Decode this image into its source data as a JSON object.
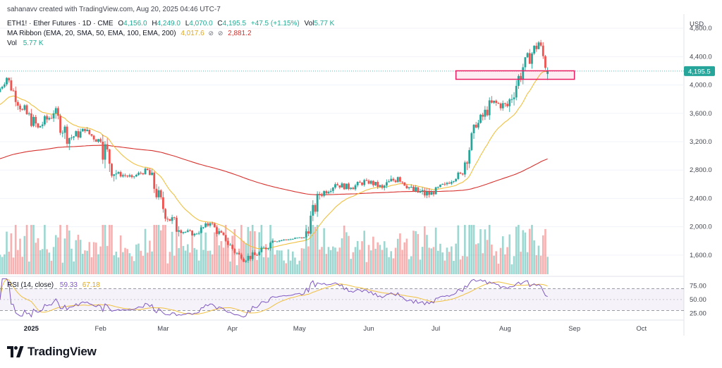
{
  "header": {
    "created": "sahanavv created with TradingView.com, Aug 20, 2025 04:46 UTC-7",
    "symbol": "ETH1! · Ether Futures · 1D · CME",
    "o_label": "O",
    "o_val": "4,156.0",
    "h_label": "H",
    "h_val": "4,249.0",
    "l_label": "L",
    "l_val": "4,070.0",
    "c_label": "C",
    "c_val": "4,195.5",
    "change": "+47.5 (+1.15%)",
    "vol_label": "Vol",
    "vol_val": "5.77 K",
    "ma_label": "MA Ribbon (EMA, 20, SMA, 50, EMA, 100, EMA, 200)",
    "ma_val1": "4,017.6",
    "ma_sym1": "⊘",
    "ma_sym2": "⊘",
    "ma_val2": "2,881.2",
    "vol2_label": "Vol",
    "vol2_val": "5.77 K"
  },
  "price_axis": {
    "currency": "USD",
    "ticks": [
      "4,800.0",
      "4,400.0",
      "4,000.0",
      "3,600.0",
      "3,200.0",
      "2,800.0",
      "2,400.0",
      "2,000.0",
      "1,600.0"
    ],
    "last_price": "4,195.5"
  },
  "rsi": {
    "label": "RSI (14, close)",
    "rsi_val": "59.33",
    "ma_val": "67.18",
    "ticks": [
      "75.00",
      "50.00",
      "25.00"
    ]
  },
  "time_axis": [
    "2025",
    "Feb",
    "Mar",
    "Apr",
    "May",
    "Jun",
    "Jul",
    "Aug",
    "Sep",
    "Oct"
  ],
  "brand": {
    "name": "TradingView"
  },
  "colors": {
    "up": "#26a69a",
    "down": "#ef5350",
    "ema20": "#f0c040",
    "ema200": "#d6322e",
    "rsi_line": "#7e57c2",
    "rsi_ma": "#f0c040",
    "zone": "#e91e63"
  },
  "chart_data": {
    "type": "candlestick",
    "title": "ETH1! · Ether Futures · 1D · CME",
    "y_unit": "USD",
    "ylim": [
      1300,
      5000
    ],
    "x_range": [
      "2024-12-18",
      "2025-10-20"
    ],
    "last": {
      "date": "2025-08-20",
      "open": 4156.0,
      "high": 4249.0,
      "low": 4070.0,
      "close": 4195.5,
      "change": 47.5,
      "change_pct": 1.15,
      "volume": "5.77K"
    },
    "ma_ribbon": {
      "ema20_last": 4017.6,
      "ema200_last": 2881.2
    },
    "highlight_zone": {
      "from_date": "2025-07-10",
      "to_date": "2025-09-01",
      "low": 4080,
      "high": 4200
    },
    "rsi_last": 59.33,
    "rsi_ma_last": 67.18,
    "candles_weekly_approx": [
      {
        "d": "2024-12-18",
        "o": 3900,
        "h": 4130,
        "l": 3850,
        "c": 4100
      },
      {
        "d": "2024-12-22",
        "o": 4100,
        "h": 4130,
        "l": 3600,
        "c": 3650
      },
      {
        "d": "2024-12-29",
        "o": 3650,
        "h": 3730,
        "l": 3150,
        "c": 3400
      },
      {
        "d": "2025-01-05",
        "o": 3400,
        "h": 3720,
        "l": 3250,
        "c": 3600
      },
      {
        "d": "2025-01-12",
        "o": 3600,
        "h": 3700,
        "l": 2950,
        "c": 3250
      },
      {
        "d": "2025-01-19",
        "o": 3250,
        "h": 3500,
        "l": 3100,
        "c": 3350
      },
      {
        "d": "2025-01-26",
        "o": 3350,
        "h": 3450,
        "l": 3100,
        "c": 3200
      },
      {
        "d": "2025-02-02",
        "o": 3200,
        "h": 3300,
        "l": 2200,
        "c": 2750
      },
      {
        "d": "2025-02-09",
        "o": 2750,
        "h": 2800,
        "l": 2600,
        "c": 2700
      },
      {
        "d": "2025-02-16",
        "o": 2700,
        "h": 2850,
        "l": 2650,
        "c": 2800
      },
      {
        "d": "2025-02-23",
        "o": 2800,
        "h": 2850,
        "l": 2100,
        "c": 2250
      },
      {
        "d": "2025-03-02",
        "o": 2250,
        "h": 2400,
        "l": 1750,
        "c": 1950
      },
      {
        "d": "2025-03-09",
        "o": 1950,
        "h": 2000,
        "l": 1800,
        "c": 1900
      },
      {
        "d": "2025-03-16",
        "o": 1900,
        "h": 2100,
        "l": 1850,
        "c": 2050
      },
      {
        "d": "2025-03-23",
        "o": 2050,
        "h": 2100,
        "l": 1750,
        "c": 1800
      },
      {
        "d": "2025-03-30",
        "o": 1800,
        "h": 1850,
        "l": 1450,
        "c": 1550
      },
      {
        "d": "2025-04-06",
        "o": 1550,
        "h": 1700,
        "l": 1400,
        "c": 1600
      },
      {
        "d": "2025-04-13",
        "o": 1600,
        "h": 1850,
        "l": 1550,
        "c": 1800
      },
      {
        "d": "2025-04-20",
        "o": 1800,
        "h": 1850,
        "l": 1750,
        "c": 1820
      },
      {
        "d": "2025-04-27",
        "o": 1820,
        "h": 1880,
        "l": 1780,
        "c": 1850
      },
      {
        "d": "2025-05-04",
        "o": 1850,
        "h": 2500,
        "l": 1800,
        "c": 2450
      },
      {
        "d": "2025-05-11",
        "o": 2450,
        "h": 2700,
        "l": 2400,
        "c": 2600
      },
      {
        "d": "2025-05-18",
        "o": 2600,
        "h": 2700,
        "l": 2450,
        "c": 2550
      },
      {
        "d": "2025-05-25",
        "o": 2550,
        "h": 2750,
        "l": 2500,
        "c": 2650
      },
      {
        "d": "2025-06-01",
        "o": 2650,
        "h": 2700,
        "l": 2450,
        "c": 2550
      },
      {
        "d": "2025-06-08",
        "o": 2550,
        "h": 2900,
        "l": 2500,
        "c": 2700
      },
      {
        "d": "2025-06-15",
        "o": 2700,
        "h": 2750,
        "l": 2450,
        "c": 2500
      },
      {
        "d": "2025-06-22",
        "o": 2500,
        "h": 2600,
        "l": 2150,
        "c": 2450
      },
      {
        "d": "2025-06-29",
        "o": 2450,
        "h": 2650,
        "l": 2400,
        "c": 2600
      },
      {
        "d": "2025-07-06",
        "o": 2600,
        "h": 2800,
        "l": 2550,
        "c": 2750
      },
      {
        "d": "2025-07-13",
        "o": 2750,
        "h": 3500,
        "l": 2700,
        "c": 3400
      },
      {
        "d": "2025-07-20",
        "o": 3400,
        "h": 3900,
        "l": 3350,
        "c": 3750
      },
      {
        "d": "2025-07-27",
        "o": 3750,
        "h": 3950,
        "l": 3550,
        "c": 3700
      },
      {
        "d": "2025-08-03",
        "o": 3700,
        "h": 4300,
        "l": 3500,
        "c": 4250
      },
      {
        "d": "2025-08-10",
        "o": 4250,
        "h": 4800,
        "l": 4200,
        "c": 4600
      },
      {
        "d": "2025-08-17",
        "o": 4600,
        "h": 4650,
        "l": 4050,
        "c": 4195.5
      }
    ]
  }
}
